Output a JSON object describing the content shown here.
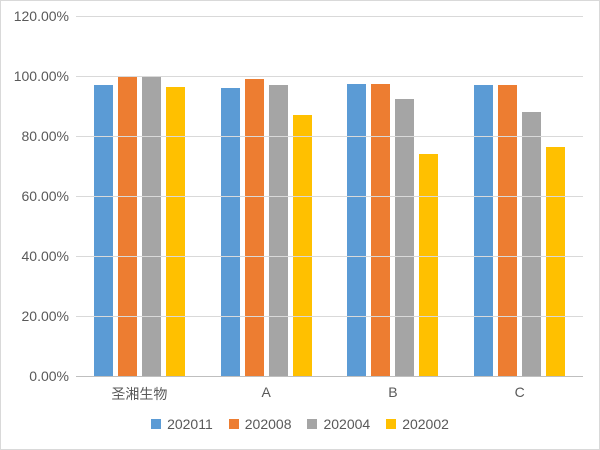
{
  "chart_data": {
    "type": "bar",
    "title": "",
    "xlabel": "",
    "ylabel": "",
    "categories": [
      "圣湘生物",
      "A",
      "B",
      "C"
    ],
    "series": [
      {
        "name": "202011",
        "color": "#5B9BD5",
        "values": [
          97.0,
          96.0,
          97.5,
          97.0
        ]
      },
      {
        "name": "202008",
        "color": "#ED7D31",
        "values": [
          100.0,
          99.0,
          97.5,
          97.0
        ]
      },
      {
        "name": "202004",
        "color": "#A5A5A5",
        "values": [
          100.0,
          97.0,
          92.5,
          88.0
        ]
      },
      {
        "name": "202002",
        "color": "#FFC000",
        "values": [
          96.5,
          87.0,
          74.0,
          76.5
        ]
      }
    ],
    "ylim": [
      0,
      120
    ],
    "ytick_step": 20,
    "ytick_labels": [
      "0.00%",
      "20.00%",
      "40.00%",
      "60.00%",
      "80.00%",
      "100.00%",
      "120.00%"
    ],
    "grid": "horizontal",
    "legend_position": "bottom"
  },
  "styles": {
    "background": "#FFFFFF",
    "border_color": "#D9D9D9",
    "gridline_color": "#D9D9D9",
    "axis_line_color": "#BFBFBF",
    "text_color": "#595959"
  }
}
